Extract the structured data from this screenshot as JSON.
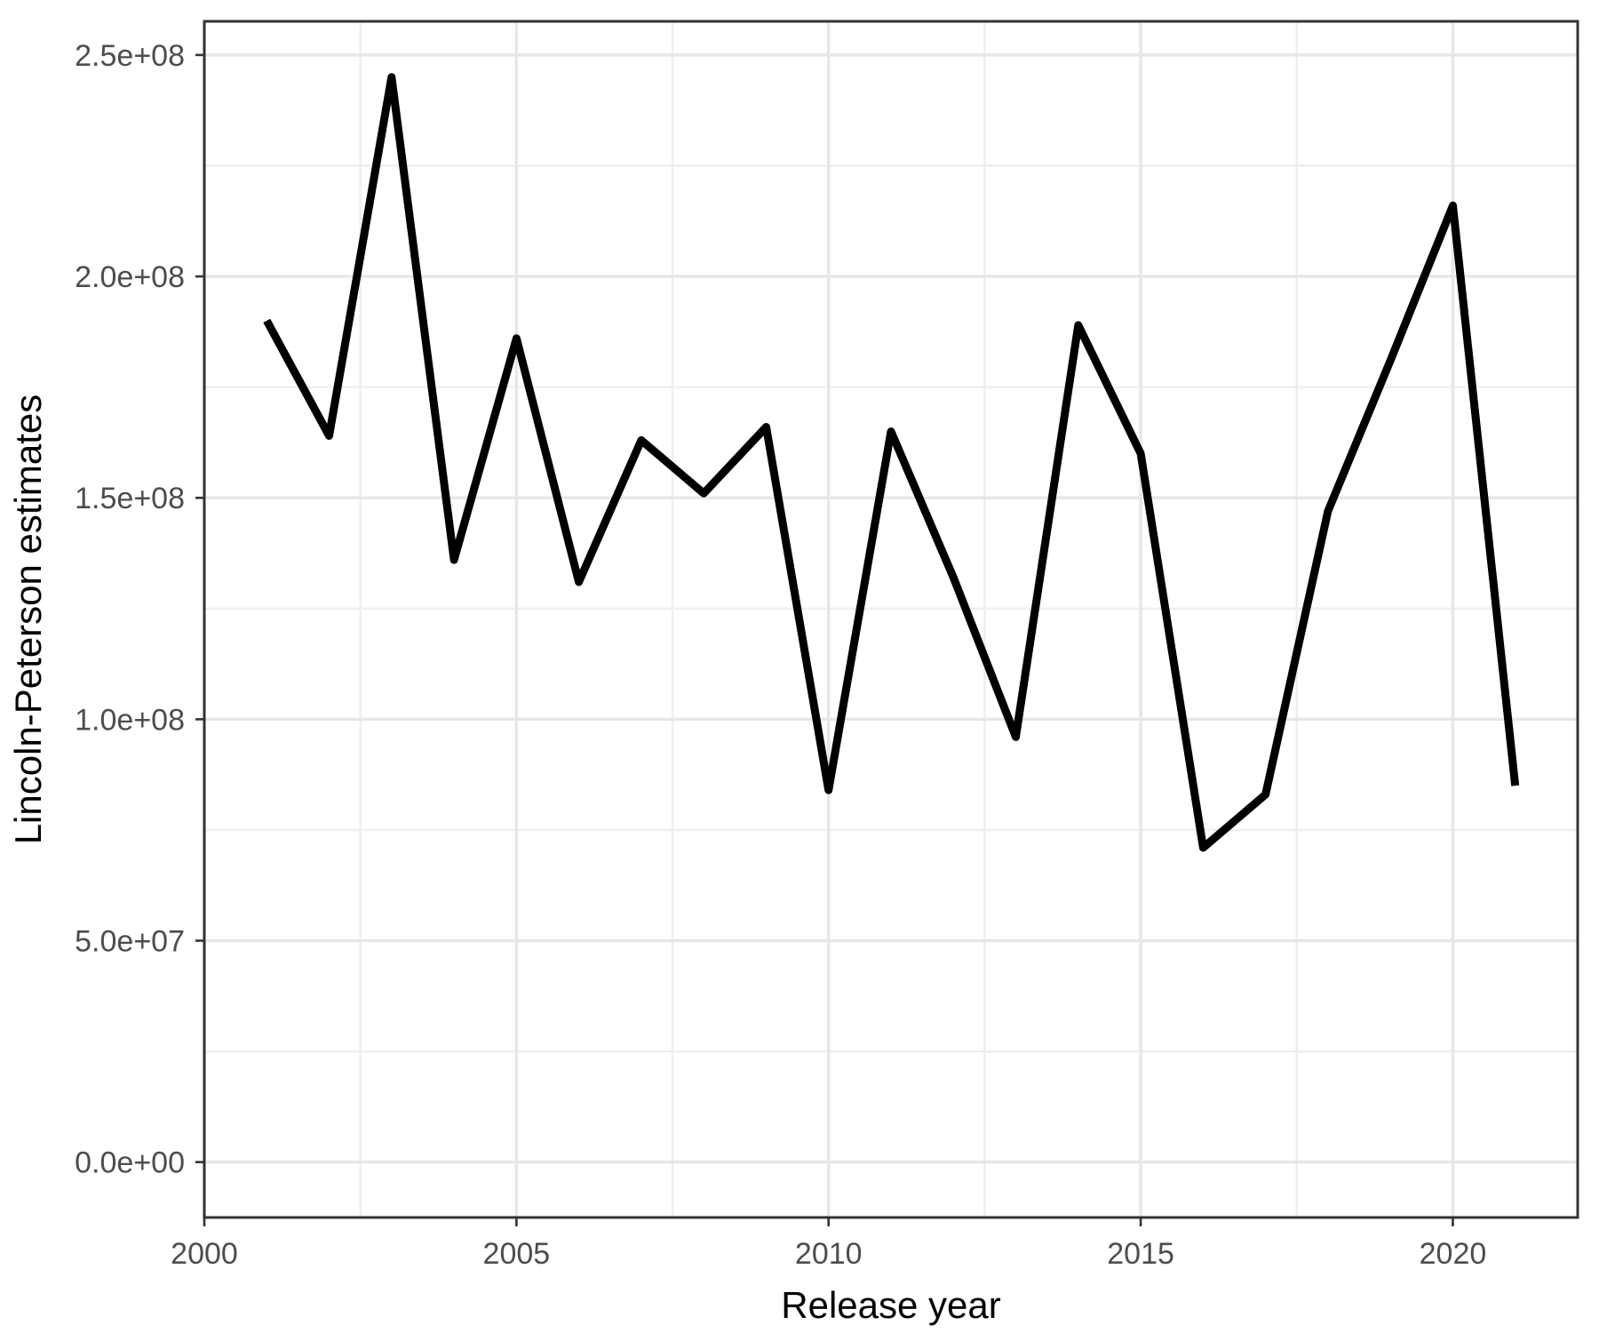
{
  "figure": {
    "background": "#ffffff",
    "panel_background": "#ffffff",
    "panel_border_color": "#333333",
    "grid_major_color": "#e7e7e7",
    "grid_minor_color": "#efefef",
    "line_color": "#000000",
    "tick_mark_color": "#333333",
    "tick_label_color": "#4d4d4d",
    "axis_title_color": "#000000"
  },
  "chart_data": {
    "type": "line",
    "title": "",
    "xlabel": "Release year",
    "ylabel": "Lincoln-Peterson estimates",
    "x": [
      2001,
      2002,
      2003,
      2004,
      2005,
      2006,
      2007,
      2008,
      2009,
      2010,
      2011,
      2012,
      2013,
      2014,
      2015,
      2016,
      2017,
      2018,
      2019,
      2020,
      2021
    ],
    "values": [
      190000000,
      164000000,
      245000000,
      136000000,
      186000000,
      131000000,
      163000000,
      151000000,
      166000000,
      84000000,
      165000000,
      132000000,
      96000000,
      189000000,
      160000000,
      71000000,
      83000000,
      147000000,
      181000000,
      216000000,
      85000000
    ],
    "xlim": [
      2000,
      2022
    ],
    "ylim": [
      -12500000,
      257600000
    ],
    "x_ticks": [
      {
        "value": 2000,
        "label": "2000"
      },
      {
        "value": 2005,
        "label": "2005"
      },
      {
        "value": 2010,
        "label": "2010"
      },
      {
        "value": 2015,
        "label": "2015"
      },
      {
        "value": 2020,
        "label": "2020"
      }
    ],
    "y_ticks": [
      {
        "value": 0,
        "label": "0.0e+00"
      },
      {
        "value": 50000000,
        "label": "5.0e+07"
      },
      {
        "value": 100000000,
        "label": "1.0e+08"
      },
      {
        "value": 150000000,
        "label": "1.5e+08"
      },
      {
        "value": 200000000,
        "label": "2.0e+08"
      },
      {
        "value": 250000000,
        "label": "2.5e+08"
      }
    ],
    "x_minor_ticks": [
      2002.5,
      2007.5,
      2012.5,
      2017.5
    ],
    "y_minor_ticks": [
      25000000,
      75000000,
      125000000,
      175000000,
      225000000
    ],
    "grid": true,
    "legend_position": "none"
  }
}
